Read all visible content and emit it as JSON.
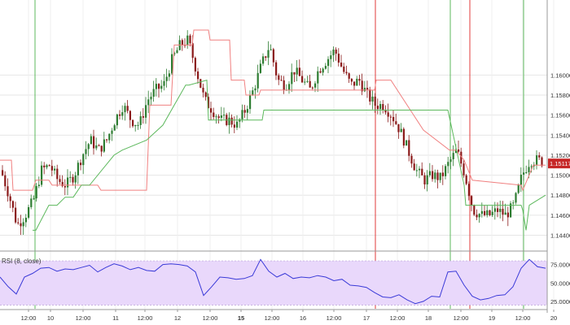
{
  "chart_data": [
    {
      "type": "candlestick",
      "panel": "price",
      "y_ticks": [
        1.144,
        1.146,
        1.148,
        1.15,
        1.152,
        1.154,
        1.156,
        1.158,
        1.16
      ],
      "y_tick_labels": [
        "1.14400",
        "1.14600",
        "1.14800",
        "1.15000",
        "1.15200",
        "1.15400",
        "1.15600",
        "1.15800",
        "1.16000"
      ],
      "ylim": [
        1.1425,
        1.1675
      ],
      "last_price_label": "1.15117",
      "last_price": 1.15117,
      "series": [
        {
          "name": "close_path",
          "x": [
            0,
            10,
            20,
            30,
            40,
            50,
            60,
            70,
            80,
            90,
            100,
            110,
            120,
            130,
            140,
            150,
            160,
            170,
            180,
            190,
            200,
            210,
            220,
            230,
            240,
            250,
            260,
            270,
            280,
            290,
            300,
            310,
            320,
            330,
            340,
            350,
            360,
            370,
            380,
            390,
            400,
            410,
            420,
            430,
            440,
            450,
            460,
            470,
            480,
            490,
            500,
            510,
            520,
            530,
            540,
            550,
            560,
            570,
            580,
            590,
            600,
            610,
            620,
            630,
            640,
            650,
            660,
            670
          ],
          "values": [
            1.1505,
            1.148,
            1.145,
            1.146,
            1.1475,
            1.1505,
            1.151,
            1.1495,
            1.149,
            1.15,
            1.152,
            1.1535,
            1.1525,
            1.1535,
            1.1555,
            1.157,
            1.1555,
            1.155,
            1.1575,
            1.1585,
            1.159,
            1.1615,
            1.163,
            1.1635,
            1.1605,
            1.1575,
            1.1565,
            1.1555,
            1.1555,
            1.155,
            1.1565,
            1.1585,
            1.161,
            1.163,
            1.1595,
            1.159,
            1.1605,
            1.1595,
            1.1585,
            1.1605,
            1.1615,
            1.1625,
            1.1605,
            1.159,
            1.1595,
            1.158,
            1.157,
            1.157,
            1.156,
            1.1545,
            1.1525,
            1.1505,
            1.1495,
            1.15,
            1.1497,
            1.1512,
            1.1525,
            1.15,
            1.1465,
            1.146,
            1.146,
            1.1465,
            1.146,
            1.147,
            1.15,
            1.1515,
            1.1515,
            1.1512
          ]
        },
        {
          "name": "upper_trailing_line",
          "color": "#f08080",
          "x": [
            0,
            14,
            16,
            40,
            44,
            60,
            64,
            120,
            124,
            180,
            184,
            210,
            214,
            236,
            238,
            256,
            258,
            282,
            284,
            300,
            302,
            318,
            320,
            322,
            460,
            462,
            480,
            520,
            552,
            560,
            570,
            580,
            640,
            642,
            655,
            670
          ],
          "values": [
            1.1515,
            1.1515,
            1.1485,
            1.1485,
            1.1495,
            1.1495,
            1.149,
            1.149,
            1.1485,
            1.1485,
            1.157,
            1.157,
            1.163,
            1.163,
            1.1645,
            1.1645,
            1.1635,
            1.1635,
            1.1595,
            1.1595,
            1.158,
            1.158,
            1.1585,
            1.1585,
            1.1585,
            1.1595,
            1.1595,
            1.1545,
            1.1525,
            1.1525,
            1.1515,
            1.1495,
            1.149,
            1.1485,
            1.151,
            1.151
          ]
        },
        {
          "name": "lower_trailing_line",
          "color": "#5cb85c",
          "x": [
            40,
            44,
            60,
            70,
            80,
            90,
            100,
            110,
            140,
            150,
            180,
            200,
            228,
            232,
            254,
            256,
            300,
            322,
            324,
            440,
            460,
            462,
            548,
            550,
            570,
            572,
            640,
            642,
            646,
            650,
            670
          ],
          "values": [
            1.1445,
            1.1445,
            1.147,
            1.147,
            1.1478,
            1.1478,
            1.149,
            1.149,
            1.152,
            1.1525,
            1.1535,
            1.155,
            1.159,
            1.159,
            1.1595,
            1.1555,
            1.1555,
            1.1555,
            1.1565,
            1.1565,
            1.1565,
            1.1565,
            1.1565,
            1.1565,
            1.149,
            1.147,
            1.147,
            1.1465,
            1.1445,
            1.147,
            1.148
          ]
        }
      ]
    },
    {
      "type": "line",
      "panel": "indicator",
      "title": "RSI (8, close)",
      "series": [
        {
          "name": "RSI",
          "color": "#3a3ad8",
          "x": [
            0,
            10,
            20,
            30,
            40,
            50,
            60,
            70,
            80,
            90,
            100,
            110,
            120,
            130,
            140,
            150,
            160,
            170,
            180,
            190,
            200,
            210,
            220,
            230,
            240,
            250,
            260,
            270,
            280,
            290,
            300,
            310,
            320,
            330,
            340,
            350,
            360,
            370,
            380,
            390,
            400,
            410,
            420,
            430,
            440,
            450,
            460,
            470,
            480,
            490,
            500,
            510,
            520,
            530,
            540,
            550,
            560,
            570,
            580,
            590,
            600,
            610,
            620,
            630,
            640,
            650,
            660,
            670
          ],
          "values": [
            58,
            45,
            35,
            58,
            63,
            70,
            71,
            66,
            69,
            68,
            71,
            74,
            65,
            71,
            76,
            73,
            68,
            71,
            67,
            66,
            75,
            76,
            75,
            73,
            65,
            33,
            45,
            58,
            57,
            55,
            56,
            60,
            82,
            66,
            58,
            63,
            56,
            58,
            57,
            60,
            58,
            53,
            55,
            47,
            46,
            44,
            37,
            31,
            30,
            34,
            27,
            22,
            25,
            32,
            31,
            65,
            66,
            47,
            32,
            27,
            29,
            33,
            34,
            45,
            70,
            82,
            72,
            70
          ]
        }
      ],
      "y_ticks": [
        25,
        50,
        75
      ],
      "y_tick_labels": [
        "25.0000",
        "50.0000",
        "75.0000"
      ],
      "ylim": [
        15,
        90
      ],
      "band": [
        20,
        80
      ]
    }
  ],
  "x_axis": {
    "tick_labels": [
      "12:00",
      "10",
      "12:00",
      "11",
      "12:00",
      "12",
      "12:00",
      "15",
      "12:00",
      "16",
      "12:00",
      "17",
      "12:00",
      "18",
      "12:00",
      "19",
      "12:00",
      "20"
    ],
    "tick_values": [
      35,
      62,
      102,
      142,
      178,
      218,
      258,
      296,
      334,
      372,
      410,
      450,
      488,
      526,
      566,
      604,
      642,
      680
    ],
    "bold": [
      "15"
    ]
  },
  "vertical_markers": [
    {
      "x": 43,
      "color": "#5cb85c"
    },
    {
      "x": 461,
      "color": "#e03b3b"
    },
    {
      "x": 553,
      "color": "#5cb85c"
    },
    {
      "x": 577,
      "color": "#e03b3b"
    },
    {
      "x": 643,
      "color": "#5cb85c"
    }
  ],
  "colors": {
    "bull": "#2e7d32",
    "bear": "#8b1a1a",
    "last_price_bg": "#c62828",
    "rsi_band": "#e9d8fb"
  }
}
